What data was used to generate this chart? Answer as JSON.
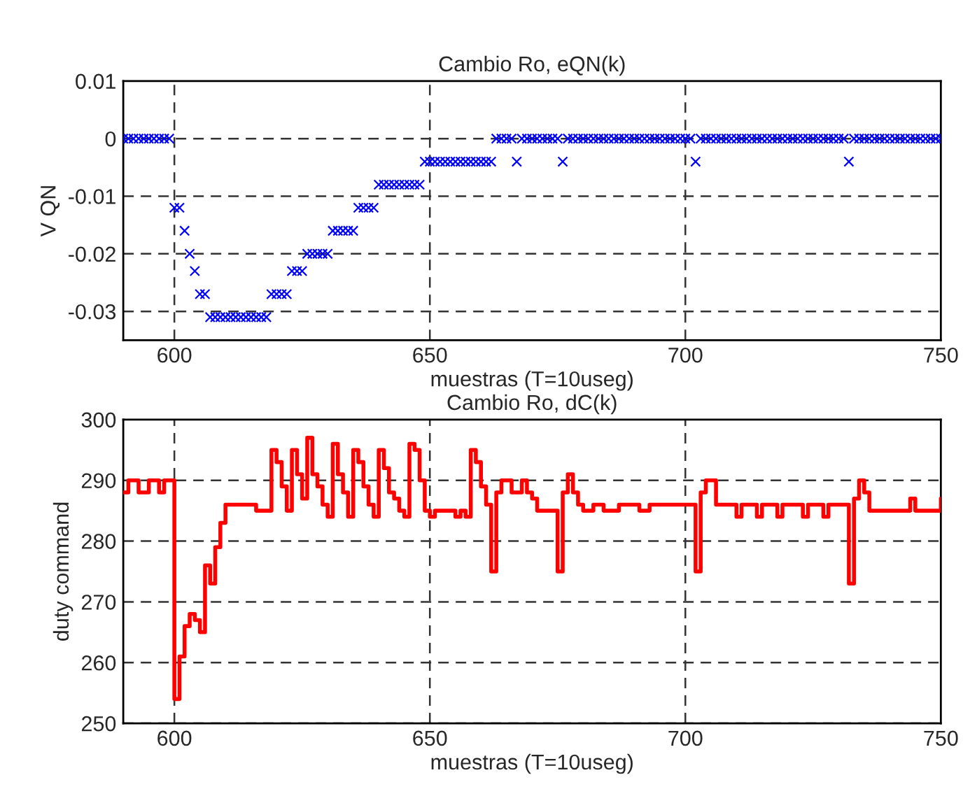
{
  "chart_data": [
    {
      "type": "scatter",
      "title": "Cambio Ro, eQN(k)",
      "xlabel": "muestras (T=10useg)",
      "ylabel": "V QN",
      "marker": "cross",
      "grid": true,
      "legend": false,
      "xlim": [
        590,
        750
      ],
      "xticks": [
        600,
        650,
        700,
        750
      ],
      "ylim": [
        -0.035,
        0.01
      ],
      "yticks": [
        -0.03,
        -0.02,
        -0.01,
        0,
        0.01
      ],
      "x": [
        590,
        591,
        592,
        593,
        594,
        595,
        596,
        597,
        598,
        599,
        600,
        601,
        602,
        603,
        604,
        605,
        606,
        607,
        608,
        609,
        610,
        611,
        612,
        613,
        614,
        615,
        616,
        617,
        618,
        619,
        620,
        621,
        622,
        623,
        624,
        625,
        626,
        627,
        628,
        629,
        630,
        631,
        632,
        633,
        634,
        635,
        636,
        637,
        638,
        639,
        640,
        641,
        642,
        643,
        644,
        645,
        646,
        647,
        648,
        649,
        650,
        651,
        652,
        653,
        654,
        655,
        656,
        657,
        658,
        659,
        660,
        661,
        662,
        663,
        664,
        665,
        666,
        667,
        668,
        669,
        670,
        671,
        672,
        673,
        674,
        675,
        676,
        677,
        678,
        679,
        680,
        681,
        682,
        683,
        684,
        685,
        686,
        687,
        688,
        689,
        690,
        691,
        692,
        693,
        694,
        695,
        696,
        697,
        698,
        699,
        700,
        701,
        702,
        703,
        704,
        705,
        706,
        707,
        708,
        709,
        710,
        711,
        712,
        713,
        714,
        715,
        716,
        717,
        718,
        719,
        720,
        721,
        722,
        723,
        724,
        725,
        726,
        727,
        728,
        729,
        730,
        731,
        732,
        733,
        734,
        735,
        736,
        737,
        738,
        739,
        740,
        741,
        742,
        743,
        744,
        745,
        746,
        747,
        748,
        749,
        750
      ],
      "series": [
        {
          "color": "#0000ff",
          "values": [
            0,
            0,
            0,
            0,
            0,
            0,
            0,
            0,
            0,
            0,
            -0.012,
            -0.012,
            -0.016,
            -0.02,
            -0.023,
            -0.027,
            -0.027,
            -0.031,
            -0.031,
            -0.031,
            -0.031,
            -0.031,
            -0.031,
            -0.031,
            -0.031,
            -0.031,
            -0.031,
            -0.031,
            -0.031,
            -0.027,
            -0.027,
            -0.027,
            -0.027,
            -0.023,
            -0.023,
            -0.023,
            -0.02,
            -0.02,
            -0.02,
            -0.02,
            -0.02,
            -0.016,
            -0.016,
            -0.016,
            -0.016,
            -0.016,
            -0.012,
            -0.012,
            -0.012,
            -0.012,
            -0.008,
            -0.008,
            -0.008,
            -0.008,
            -0.008,
            -0.008,
            -0.008,
            -0.008,
            -0.008,
            -0.004,
            -0.004,
            -0.004,
            -0.004,
            -0.004,
            -0.004,
            -0.004,
            -0.004,
            -0.004,
            -0.004,
            -0.004,
            -0.004,
            -0.004,
            -0.004,
            0,
            0,
            0,
            0,
            -0.004,
            0,
            0,
            0,
            0,
            0,
            0,
            0,
            0,
            -0.004,
            0,
            0,
            0,
            0,
            0,
            0,
            0,
            0,
            0,
            0,
            0,
            0,
            0,
            0,
            0,
            0,
            0,
            0,
            0,
            0,
            0,
            0,
            0,
            0,
            0,
            -0.004,
            0,
            0,
            0,
            0,
            0,
            0,
            0,
            0,
            0,
            0,
            0,
            0,
            0,
            0,
            0,
            0,
            0,
            0,
            0,
            0,
            0,
            0,
            0,
            0,
            0,
            0,
            0,
            0,
            0,
            -0.004,
            0,
            0,
            0,
            0,
            0,
            0,
            0,
            0,
            0,
            0,
            0,
            0,
            0,
            0,
            0,
            0,
            0,
            0
          ]
        }
      ]
    },
    {
      "type": "step",
      "title": "Cambio Ro, dC(k)",
      "xlabel": "muestras (T=10useg)",
      "ylabel": "duty command",
      "line_style": "solid",
      "marker": "none",
      "grid": true,
      "legend": false,
      "xlim": [
        590,
        750
      ],
      "xticks": [
        600,
        650,
        700,
        750
      ],
      "ylim": [
        250,
        300
      ],
      "yticks": [
        250,
        260,
        270,
        280,
        290,
        300
      ],
      "x": [
        590,
        591,
        592,
        593,
        594,
        595,
        596,
        597,
        598,
        599,
        600,
        601,
        602,
        603,
        604,
        605,
        606,
        607,
        608,
        609,
        610,
        611,
        612,
        613,
        614,
        615,
        616,
        617,
        618,
        619,
        620,
        621,
        622,
        623,
        624,
        625,
        626,
        627,
        628,
        629,
        630,
        631,
        632,
        633,
        634,
        635,
        636,
        637,
        638,
        639,
        640,
        641,
        642,
        643,
        644,
        645,
        646,
        647,
        648,
        649,
        650,
        651,
        652,
        653,
        654,
        655,
        656,
        657,
        658,
        659,
        660,
        661,
        662,
        663,
        664,
        665,
        666,
        667,
        668,
        669,
        670,
        671,
        672,
        673,
        674,
        675,
        676,
        677,
        678,
        679,
        680,
        681,
        682,
        683,
        684,
        685,
        686,
        687,
        688,
        689,
        690,
        691,
        692,
        693,
        694,
        695,
        696,
        697,
        698,
        699,
        700,
        701,
        702,
        703,
        704,
        705,
        706,
        707,
        708,
        709,
        710,
        711,
        712,
        713,
        714,
        715,
        716,
        717,
        718,
        719,
        720,
        721,
        722,
        723,
        724,
        725,
        726,
        727,
        728,
        729,
        730,
        731,
        732,
        733,
        734,
        735,
        736,
        737,
        738,
        739,
        740,
        741,
        742,
        743,
        744,
        745,
        746,
        747,
        748,
        749,
        750
      ],
      "series": [
        {
          "color": "#ff0000",
          "values": [
            288,
            290,
            290,
            288,
            288,
            290,
            290,
            288,
            290,
            290,
            254,
            261,
            266,
            268,
            267,
            265,
            276,
            273,
            279,
            283,
            286,
            286,
            286,
            286,
            286,
            286,
            285,
            285,
            285,
            295,
            293,
            289,
            285,
            295,
            291,
            287,
            297,
            291,
            289,
            286,
            284,
            296,
            291,
            288,
            284,
            295,
            293,
            289,
            286,
            284,
            295,
            292,
            288,
            287,
            285,
            284,
            296,
            295,
            290,
            285,
            284,
            285,
            285,
            285,
            285,
            284,
            285,
            284,
            295,
            293,
            289,
            286,
            275,
            288,
            290,
            290,
            288,
            288,
            290,
            288,
            287,
            285,
            285,
            285,
            285,
            275,
            288,
            291,
            288,
            286,
            285,
            285,
            286,
            286,
            285,
            285,
            285,
            286,
            286,
            286,
            286,
            285,
            285,
            286,
            286,
            286,
            286,
            286,
            286,
            286,
            286,
            286,
            275,
            288,
            290,
            290,
            286,
            286,
            286,
            286,
            284,
            286,
            286,
            286,
            284,
            286,
            286,
            286,
            284,
            286,
            286,
            286,
            286,
            284,
            286,
            286,
            286,
            284,
            286,
            286,
            286,
            286,
            273,
            287,
            290,
            288,
            285,
            285,
            285,
            285,
            285,
            285,
            285,
            285,
            287,
            285,
            285,
            285,
            285,
            285,
            287
          ]
        }
      ]
    }
  ]
}
